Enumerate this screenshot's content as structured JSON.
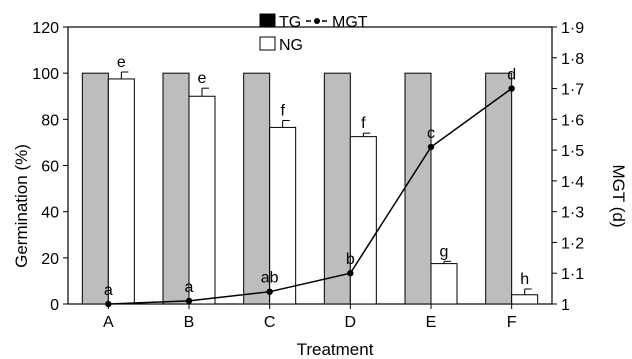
{
  "chart_data": {
    "type": "bar",
    "xlabel": "Treatment",
    "ylabel": "Germination (%)",
    "y2label": "MGT (d)",
    "categories": [
      "A",
      "B",
      "C",
      "D",
      "E",
      "F"
    ],
    "ylim": [
      0,
      120
    ],
    "yticks": [
      "0",
      "20",
      "40",
      "60",
      "80",
      "100",
      "120"
    ],
    "y2lim": [
      1,
      1.9
    ],
    "y2ticks": [
      "1",
      "1·1",
      "1·2",
      "1·3",
      "1·4",
      "1·5",
      "1·6",
      "1·7",
      "1·8",
      "1·9"
    ],
    "grid": false,
    "legend_position": "top-center",
    "series": [
      {
        "name": "TG",
        "kind": "bar",
        "color": "#bdbdbd",
        "values": [
          100,
          100,
          100,
          100,
          100,
          100
        ]
      },
      {
        "name": "NG",
        "kind": "bar",
        "color": "#ffffff",
        "values": [
          97.5,
          90,
          76.5,
          72.5,
          17.5,
          4
        ],
        "errors": [
          3,
          3.5,
          3,
          1.5,
          1,
          2.5
        ],
        "labels": [
          "e",
          "e",
          "f",
          "f",
          "g",
          "h"
        ]
      },
      {
        "name": "MGT",
        "kind": "line",
        "axis": "right",
        "color": "#000000",
        "values": [
          1.0,
          1.01,
          1.04,
          1.1,
          1.51,
          1.7
        ],
        "labels": [
          "a",
          "a",
          "ab",
          "b",
          "c",
          "d"
        ]
      }
    ]
  }
}
